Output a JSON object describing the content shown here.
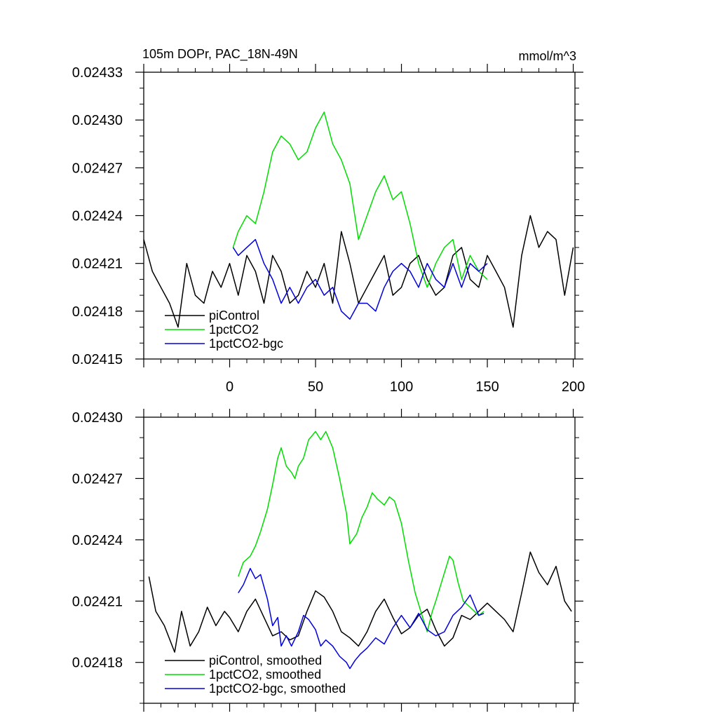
{
  "chart_data": [
    {
      "type": "line",
      "title": "105m DOPr, PAC_18N-49N",
      "units": "mmol/m^3",
      "xlim": [
        -50,
        201
      ],
      "ylim": [
        0.02415,
        0.02433
      ],
      "x_ticks": [
        0,
        50,
        100,
        150,
        200
      ],
      "y_ticks": [
        "0.02433",
        "0.02430",
        "0.02427",
        "0.02424",
        "0.02421",
        "0.02418",
        "0.02415"
      ],
      "y_tick_values": [
        0.02433,
        0.0243,
        0.02427,
        0.02424,
        0.02421,
        0.02418,
        0.02415
      ],
      "legend_position": "bottom-left",
      "series": [
        {
          "name": "piControl",
          "color": "#000000",
          "x": [
            -50,
            -45,
            -40,
            -35,
            -30,
            -25,
            -20,
            -15,
            -10,
            -5,
            0,
            5,
            10,
            15,
            20,
            25,
            30,
            35,
            40,
            45,
            50,
            55,
            60,
            65,
            70,
            75,
            80,
            85,
            90,
            95,
            100,
            105,
            110,
            115,
            120,
            125,
            130,
            135,
            140,
            145,
            150,
            155,
            160,
            165,
            170,
            175,
            180,
            185,
            190,
            195,
            200
          ],
          "y": [
            0.024225,
            0.024205,
            0.024195,
            0.024185,
            0.02417,
            0.02421,
            0.02419,
            0.024185,
            0.024205,
            0.024195,
            0.02421,
            0.02419,
            0.024215,
            0.024205,
            0.024185,
            0.024215,
            0.024205,
            0.024185,
            0.02419,
            0.024205,
            0.024195,
            0.02421,
            0.024185,
            0.02423,
            0.02421,
            0.024185,
            0.024195,
            0.024205,
            0.024215,
            0.02419,
            0.024195,
            0.02421,
            0.024215,
            0.0242,
            0.02419,
            0.024195,
            0.024215,
            0.02422,
            0.0242,
            0.024195,
            0.024215,
            0.024205,
            0.024195,
            0.02417,
            0.024215,
            0.02424,
            0.02422,
            0.02423,
            0.024225,
            0.02419,
            0.02422
          ]
        },
        {
          "name": "1pctCO2",
          "color": "#00dd00",
          "x": [
            2,
            5,
            10,
            15,
            20,
            25,
            30,
            35,
            40,
            45,
            50,
            55,
            60,
            65,
            70,
            75,
            80,
            85,
            90,
            95,
            100,
            105,
            110,
            115,
            120,
            125,
            130,
            135,
            140,
            145,
            150
          ],
          "y": [
            0.02422,
            0.02423,
            0.02424,
            0.024235,
            0.024255,
            0.02428,
            0.02429,
            0.024285,
            0.024275,
            0.02428,
            0.024295,
            0.024305,
            0.024285,
            0.024275,
            0.02426,
            0.024225,
            0.02424,
            0.024255,
            0.024265,
            0.02425,
            0.024255,
            0.024235,
            0.02421,
            0.024195,
            0.02421,
            0.02422,
            0.024225,
            0.0242,
            0.024215,
            0.024205,
            0.0242
          ]
        },
        {
          "name": "1pctCO2-bgc",
          "color": "#0000dd",
          "x": [
            2,
            5,
            10,
            15,
            20,
            25,
            30,
            35,
            40,
            45,
            50,
            55,
            60,
            65,
            70,
            75,
            80,
            85,
            90,
            95,
            100,
            105,
            110,
            115,
            120,
            125,
            130,
            135,
            140,
            145,
            150
          ],
          "y": [
            0.02422,
            0.024215,
            0.02422,
            0.024225,
            0.02421,
            0.0242,
            0.024185,
            0.024195,
            0.024185,
            0.024195,
            0.0242,
            0.02419,
            0.024195,
            0.02418,
            0.024175,
            0.024185,
            0.024185,
            0.02418,
            0.024195,
            0.024205,
            0.02421,
            0.024205,
            0.024195,
            0.02421,
            0.0242,
            0.024195,
            0.02421,
            0.024195,
            0.02421,
            0.024205,
            0.02421
          ]
        }
      ]
    },
    {
      "type": "line",
      "title": "",
      "xlim": [
        -50,
        201
      ],
      "ylim": [
        0.02416,
        0.0243
      ],
      "y_ticks": [
        "0.02430",
        "0.02427",
        "0.02424",
        "0.02421",
        "0.02418"
      ],
      "y_tick_values": [
        0.0243,
        0.02427,
        0.02424,
        0.02421,
        0.02418
      ],
      "legend_position": "bottom-left",
      "series": [
        {
          "name": "piControl, smoothed",
          "color": "#000000",
          "x": [
            -47,
            -43,
            -38,
            -32,
            -28,
            -23,
            -18,
            -13,
            -8,
            -3,
            0,
            5,
            10,
            15,
            20,
            25,
            30,
            35,
            40,
            45,
            50,
            55,
            60,
            65,
            70,
            75,
            80,
            85,
            90,
            95,
            100,
            105,
            110,
            115,
            120,
            125,
            130,
            135,
            140,
            145,
            150,
            155,
            160,
            165,
            170,
            175,
            180,
            185,
            190,
            195,
            199
          ],
          "y": [
            0.024222,
            0.024205,
            0.024198,
            0.024185,
            0.024205,
            0.024188,
            0.024195,
            0.024207,
            0.024198,
            0.024205,
            0.024202,
            0.024195,
            0.024205,
            0.024211,
            0.024202,
            0.024193,
            0.024195,
            0.024191,
            0.024193,
            0.024205,
            0.024215,
            0.024212,
            0.024205,
            0.024195,
            0.024192,
            0.024188,
            0.024195,
            0.024205,
            0.024211,
            0.024202,
            0.024194,
            0.024197,
            0.024203,
            0.024206,
            0.024196,
            0.024188,
            0.024192,
            0.024203,
            0.024201,
            0.024205,
            0.024209,
            0.024205,
            0.024201,
            0.024195,
            0.024214,
            0.024234,
            0.024224,
            0.024218,
            0.024227,
            0.02421,
            0.024205
          ]
        },
        {
          "name": "1pctCO2, smoothed",
          "color": "#00dd00",
          "x": [
            5,
            8,
            12,
            15,
            18,
            22,
            25,
            28,
            30,
            33,
            36,
            38,
            40,
            43,
            46,
            50,
            53,
            56,
            60,
            64,
            68,
            70,
            74,
            77,
            80,
            83,
            86,
            90,
            93,
            96,
            100,
            104,
            108,
            112,
            115,
            118,
            120,
            124,
            128,
            130,
            133,
            136,
            140,
            145,
            148
          ],
          "y": [
            0.024222,
            0.024229,
            0.024232,
            0.024237,
            0.024244,
            0.024255,
            0.024267,
            0.02428,
            0.024285,
            0.024276,
            0.024273,
            0.02427,
            0.024276,
            0.02428,
            0.024289,
            0.024293,
            0.024289,
            0.024293,
            0.024285,
            0.02427,
            0.024253,
            0.024238,
            0.024243,
            0.024251,
            0.024256,
            0.024263,
            0.02426,
            0.024257,
            0.024261,
            0.024259,
            0.024248,
            0.02423,
            0.024214,
            0.024203,
            0.024195,
            0.024205,
            0.02421,
            0.024221,
            0.024232,
            0.02423,
            0.024219,
            0.02421,
            0.024207,
            0.024203,
            0.024205
          ]
        },
        {
          "name": "1pctCO2-bgc, smoothed",
          "color": "#0000dd",
          "x": [
            5,
            8,
            12,
            15,
            18,
            22,
            25,
            28,
            30,
            33,
            36,
            40,
            43,
            46,
            50,
            53,
            56,
            60,
            64,
            68,
            70,
            73,
            76,
            80,
            85,
            90,
            95,
            100,
            105,
            110,
            115,
            120,
            125,
            130,
            135,
            140,
            145,
            148
          ],
          "y": [
            0.024214,
            0.024218,
            0.024226,
            0.024221,
            0.024223,
            0.024211,
            0.024198,
            0.024202,
            0.024188,
            0.024193,
            0.024188,
            0.024195,
            0.024203,
            0.024201,
            0.024196,
            0.024188,
            0.024191,
            0.024188,
            0.024183,
            0.02418,
            0.024177,
            0.024181,
            0.024184,
            0.024187,
            0.024192,
            0.024189,
            0.024197,
            0.024203,
            0.024197,
            0.024204,
            0.024196,
            0.024193,
            0.024195,
            0.024203,
            0.024207,
            0.024213,
            0.024203,
            0.024204
          ]
        }
      ]
    }
  ]
}
